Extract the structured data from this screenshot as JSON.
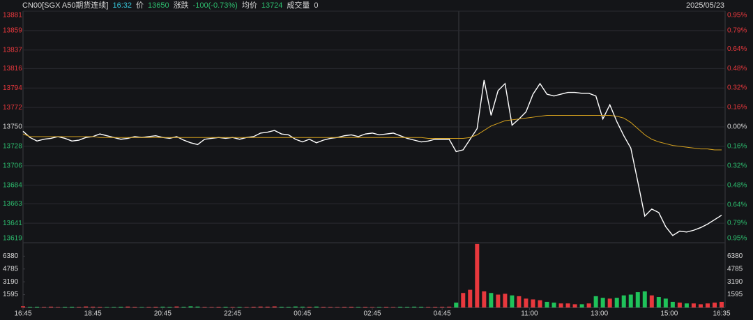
{
  "header": {
    "symbol": "CN00[SGX A50期货连续]",
    "time": "16:32",
    "price_label": "价",
    "price": "13650",
    "change_label": "涨跌",
    "change": "-100(-0.73%)",
    "avg_label": "均价",
    "avg": "13724",
    "volume_label": "成交量",
    "volume": "0",
    "date": "2025/05/23"
  },
  "chart_data": [
    {
      "type": "line",
      "xlim": [
        0,
        100
      ],
      "ylim": [
        13619,
        13881
      ],
      "base": 13750,
      "up_color": "#e8383d",
      "down_color": "#2dbd6e",
      "grid": true,
      "yticks": [
        13881,
        13859,
        13837,
        13816,
        13794,
        13772,
        13750,
        13728,
        13706,
        13684,
        13663,
        13641,
        13619
      ],
      "y2lim": [
        -0.95,
        0.95
      ],
      "y2ticks": [
        {
          "value": 0.95,
          "label": "0.95%"
        },
        {
          "value": 0.79,
          "label": "0.79%"
        },
        {
          "value": 0.64,
          "label": "0.64%"
        },
        {
          "value": 0.48,
          "label": "0.48%"
        },
        {
          "value": 0.32,
          "label": "0.32%"
        },
        {
          "value": 0.16,
          "label": "0.16%"
        },
        {
          "value": 0,
          "label": "0.00%"
        },
        {
          "value": -0.16,
          "label": "0.16%"
        },
        {
          "value": -0.32,
          "label": "0.32%"
        },
        {
          "value": -0.48,
          "label": "0.48%"
        },
        {
          "value": -0.64,
          "label": "0.64%"
        },
        {
          "value": -0.79,
          "label": "0.79%"
        },
        {
          "value": -0.95,
          "label": "0.95%"
        }
      ],
      "series": [
        {
          "color": "#ffffff",
          "values": [
            13745,
            13738,
            13734,
            13736,
            13737,
            13739,
            13737,
            13734,
            13735,
            13738,
            13739,
            13742,
            13740,
            13738,
            13736,
            13737,
            13739,
            13738,
            13739,
            13740,
            13738,
            13737,
            13739,
            13735,
            13732,
            13730,
            13736,
            13737,
            13738,
            13737,
            13738,
            13736,
            13738,
            13739,
            13743,
            13744,
            13746,
            13742,
            13741,
            13736,
            13733,
            13736,
            13732,
            13735,
            13737,
            13738,
            13740,
            13741,
            13739,
            13742,
            13743,
            13741,
            13742,
            13743,
            13740,
            13737,
            13735,
            13733,
            13734,
            13736,
            13736,
            13736,
            13722,
            13724,
            13736,
            13748,
            13803,
            13763,
            13791,
            13799,
            13752,
            13759,
            13767,
            13787,
            13799,
            13787,
            13785,
            13787,
            13789,
            13789,
            13788,
            13788,
            13785,
            13759,
            13775,
            13756,
            13740,
            13726,
            13688,
            13649,
            13657,
            13653,
            13637,
            13627,
            13632,
            13631,
            13633,
            13636,
            13640,
            13645,
            13650
          ]
        },
        {
          "color": "#d6a21e",
          "values": [
            13742,
            13739,
            13739,
            13739,
            13739,
            13739,
            13739,
            13739,
            13739,
            13739,
            13739,
            13738,
            13738,
            13738,
            13738,
            13738,
            13738,
            13738,
            13738,
            13738,
            13738,
            13738,
            13738,
            13738,
            13738,
            13738,
            13738,
            13738,
            13738,
            13738,
            13738,
            13738,
            13738,
            13738,
            13738,
            13738,
            13738,
            13738,
            13738,
            13738,
            13738,
            13738,
            13738,
            13738,
            13738,
            13738,
            13738,
            13738,
            13738,
            13738,
            13738,
            13738,
            13738,
            13738,
            13738,
            13738,
            13738,
            13738,
            13737,
            13737,
            13737,
            13737,
            13737,
            13737,
            13738,
            13741,
            13746,
            13751,
            13754,
            13757,
            13758,
            13759,
            13760,
            13761,
            13762,
            13763,
            13763,
            13763,
            13763,
            13763,
            13763,
            13763,
            13763,
            13763,
            13763,
            13762,
            13760,
            13755,
            13748,
            13741,
            13736,
            13733,
            13731,
            13729,
            13728,
            13727,
            13726,
            13725,
            13725,
            13724,
            13724
          ]
        }
      ]
    },
    {
      "type": "bar",
      "xlim": [
        0,
        100
      ],
      "ylim": [
        0,
        7975
      ],
      "up_color": "#e8383d",
      "down_color": "#1fc25a",
      "yticks": [
        6380,
        4785,
        3190,
        1595
      ],
      "xticks": [
        {
          "value": 0,
          "label": "16:45"
        },
        {
          "value": 10,
          "label": "18:45"
        },
        {
          "value": 20,
          "label": "20:45"
        },
        {
          "value": 30,
          "label": "22:45"
        },
        {
          "value": 40,
          "label": "00:45"
        },
        {
          "value": 50,
          "label": "02:45"
        },
        {
          "value": 60,
          "label": "04:45"
        },
        {
          "value": 72.5,
          "label": "11:00"
        },
        {
          "value": 82.5,
          "label": "13:00"
        },
        {
          "value": 92.5,
          "label": "15:00"
        },
        {
          "value": 100,
          "label": "16:35"
        }
      ],
      "values": [
        150,
        80,
        90,
        70,
        100,
        60,
        80,
        90,
        70,
        120,
        100,
        80,
        60,
        70,
        90,
        110,
        80,
        60,
        70,
        90,
        100,
        80,
        120,
        90,
        140,
        110,
        70,
        60,
        80,
        90,
        70,
        80,
        60,
        90,
        110,
        100,
        130,
        90,
        80,
        120,
        100,
        90,
        110,
        80,
        70,
        60,
        80,
        90,
        70,
        80,
        60,
        70,
        80,
        60,
        90,
        80,
        100,
        90,
        70,
        80,
        90,
        100,
        600,
        1800,
        2200,
        7900,
        2000,
        1800,
        1600,
        1700,
        1500,
        1400,
        1100,
        1000,
        900,
        700,
        600,
        500,
        500,
        400,
        400,
        500,
        1400,
        1200,
        1100,
        1200,
        1500,
        1600,
        1900,
        2000,
        1500,
        1300,
        1100,
        700,
        600,
        500,
        500,
        400,
        500,
        600,
        700
      ]
    }
  ]
}
